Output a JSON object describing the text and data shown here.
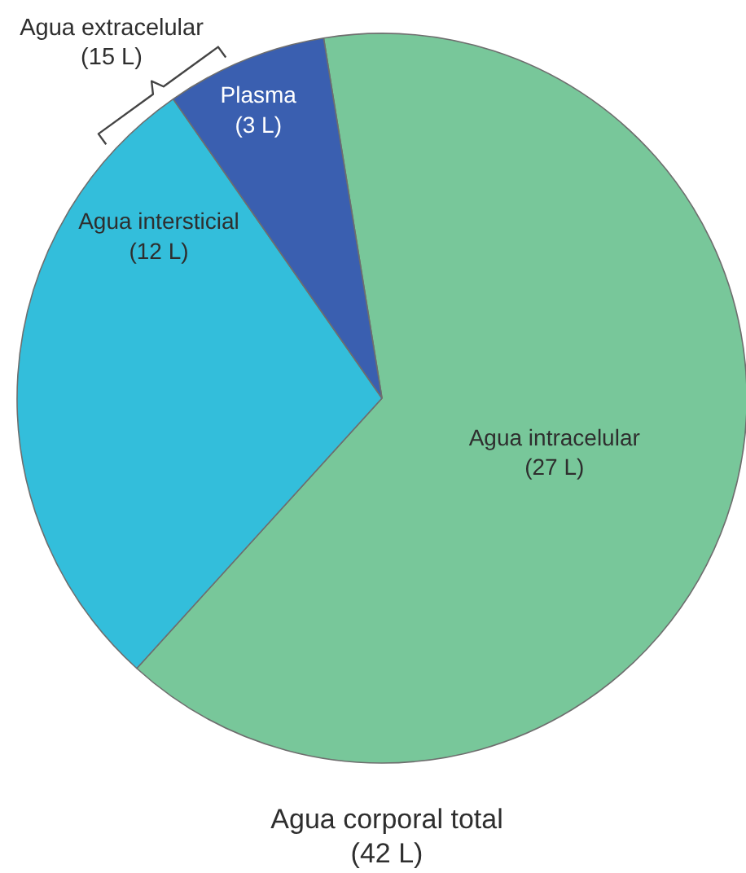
{
  "chart_data": {
    "type": "pie",
    "title": "Agua corporal total\n(42 L)",
    "categories": [
      "Agua intracelular",
      "Agua intersticial",
      "Plasma"
    ],
    "values": [
      27,
      12,
      3
    ],
    "colors": [
      "#78c79a",
      "#33bedb",
      "#3a5fb0"
    ],
    "value_labels": [
      "(27 L)",
      "(12 L)",
      "(3 L)"
    ],
    "annotations": [
      "Agua extracelular\n(15 L)"
    ]
  }
}
